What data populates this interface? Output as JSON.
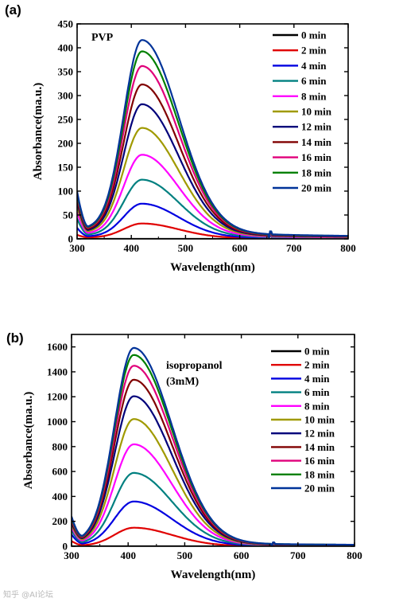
{
  "watermark": "知乎 @AI论坛",
  "chart_data": [
    {
      "panel": "(a)",
      "type": "line",
      "annotation": "PVP",
      "xlabel": "Wavelength(nm)",
      "ylabel": "Absorbance(ma.u.)",
      "xlim": [
        300,
        800
      ],
      "ylim": [
        0,
        450
      ],
      "xticks": [
        300,
        400,
        500,
        600,
        700,
        800
      ],
      "yticks": [
        0,
        50,
        100,
        150,
        200,
        250,
        300,
        350,
        400,
        450
      ],
      "legend_position": "top-right",
      "grid": false,
      "series": [
        {
          "name": "0 min",
          "color": "#000000",
          "peak": 0,
          "base": 0,
          "tail": 0
        },
        {
          "name": "2 min",
          "color": "#e00000",
          "peak": 30,
          "base": 6,
          "tail": 3
        },
        {
          "name": "4 min",
          "color": "#0000e0",
          "peak": 70,
          "base": 20,
          "tail": 5
        },
        {
          "name": "6 min",
          "color": "#008080",
          "peak": 118,
          "base": 38,
          "tail": 8
        },
        {
          "name": "8 min",
          "color": "#ff00ff",
          "peak": 168,
          "base": 50,
          "tail": 11
        },
        {
          "name": "10 min",
          "color": "#a09a00",
          "peak": 222,
          "base": 60,
          "tail": 14
        },
        {
          "name": "12 min",
          "color": "#00007a",
          "peak": 270,
          "base": 68,
          "tail": 16
        },
        {
          "name": "14 min",
          "color": "#800000",
          "peak": 310,
          "base": 72,
          "tail": 18
        },
        {
          "name": "16 min",
          "color": "#e0007a",
          "peak": 347,
          "base": 76,
          "tail": 20
        },
        {
          "name": "18 min",
          "color": "#008000",
          "peak": 377,
          "base": 80,
          "tail": 21
        },
        {
          "name": "20 min",
          "color": "#003399",
          "peak": 400,
          "base": 85,
          "tail": 22
        }
      ]
    },
    {
      "panel": "(b)",
      "type": "line",
      "annotation": [
        "isopropanol",
        "(3mM)"
      ],
      "xlabel": "Wavelength(nm)",
      "ylabel": "Absorbance(ma.u.)",
      "xlim": [
        300,
        800
      ],
      "ylim": [
        0,
        1700
      ],
      "xticks": [
        300,
        400,
        500,
        600,
        700,
        800
      ],
      "yticks": [
        0,
        200,
        400,
        600,
        800,
        1000,
        1200,
        1400,
        1600
      ],
      "legend_position": "top-right",
      "grid": false,
      "series": [
        {
          "name": "0 min",
          "color": "#000000",
          "peak": 0,
          "base": 0,
          "tail": 0
        },
        {
          "name": "2 min",
          "color": "#e00000",
          "peak": 145,
          "base": 40,
          "tail": 5
        },
        {
          "name": "4 min",
          "color": "#0000e0",
          "peak": 350,
          "base": 90,
          "tail": 12
        },
        {
          "name": "6 min",
          "color": "#008080",
          "peak": 575,
          "base": 120,
          "tail": 18
        },
        {
          "name": "8 min",
          "color": "#ff00ff",
          "peak": 800,
          "base": 140,
          "tail": 24
        },
        {
          "name": "10 min",
          "color": "#a09a00",
          "peak": 1000,
          "base": 155,
          "tail": 28
        },
        {
          "name": "12 min",
          "color": "#00007a",
          "peak": 1180,
          "base": 170,
          "tail": 32
        },
        {
          "name": "14 min",
          "color": "#800000",
          "peak": 1310,
          "base": 180,
          "tail": 35
        },
        {
          "name": "16 min",
          "color": "#e0007a",
          "peak": 1420,
          "base": 190,
          "tail": 38
        },
        {
          "name": "18 min",
          "color": "#008000",
          "peak": 1505,
          "base": 200,
          "tail": 40
        },
        {
          "name": "20 min",
          "color": "#003399",
          "peak": 1560,
          "base": 210,
          "tail": 42
        }
      ]
    }
  ]
}
